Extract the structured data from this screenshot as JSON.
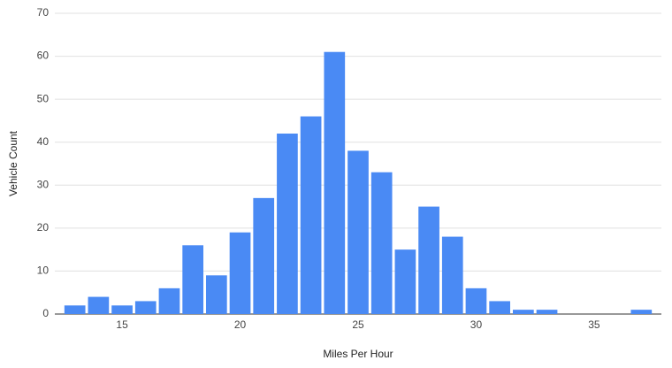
{
  "chart_data": {
    "type": "histogram",
    "x_label": "Miles Per Hour",
    "y_label": "Vehicle Count",
    "bins": [
      12.5,
      13.5,
      14.5,
      15.5,
      16.5,
      17.5,
      18.5,
      19.5,
      20.5,
      21.5,
      22.5,
      23.5,
      24.5,
      25.5,
      26.5,
      27.5,
      28.5,
      29.5,
      30.5,
      31.5,
      32.5,
      33.5,
      34.5,
      35.5,
      36.5,
      37.5
    ],
    "counts": [
      2,
      4,
      2,
      3,
      6,
      16,
      9,
      19,
      27,
      42,
      46,
      61,
      38,
      33,
      15,
      25,
      18,
      6,
      3,
      1,
      1,
      0,
      0,
      0,
      1
    ],
    "color": "#4a8af4",
    "xlim": [
      12.15,
      37.85
    ],
    "ylim": [
      0,
      70
    ],
    "xticks": [
      15,
      20,
      25,
      30,
      35
    ],
    "yticks": [
      0,
      10,
      20,
      30,
      40,
      50,
      60,
      70
    ],
    "grid": true
  }
}
